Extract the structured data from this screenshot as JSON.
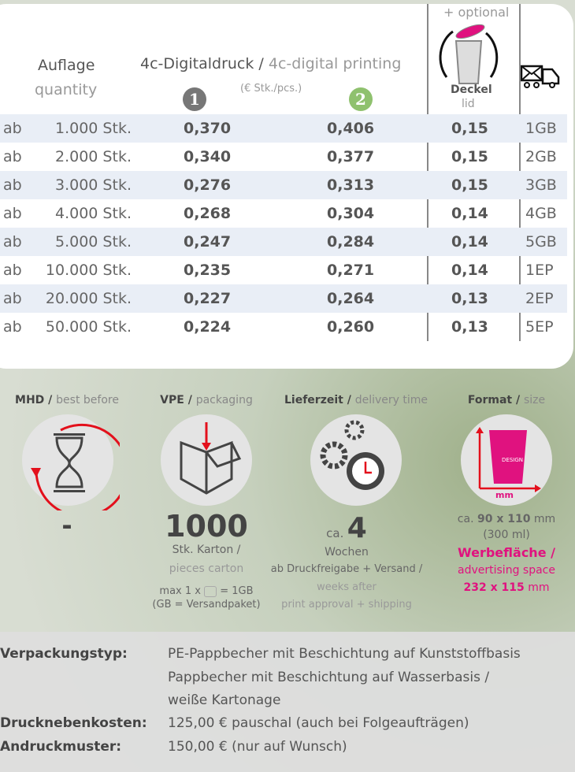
{
  "table": {
    "optional": "+ optional",
    "qty_de": "Auflage",
    "qty_en": "quantity",
    "print_de": "4c-Digitaldruck /",
    "print_en": "4c-digital printing",
    "unit": "(€ Stk./pcs.)",
    "badge1": "1",
    "badge2": "2",
    "lid_de": "Deckel",
    "lid_en": "lid",
    "rows": [
      {
        "ab": "ab",
        "qty": "1.000 Stk.",
        "p1": "0,370",
        "p2": "0,406",
        "lid": "0,15",
        "gb": "1GB"
      },
      {
        "ab": "ab",
        "qty": "2.000 Stk.",
        "p1": "0,340",
        "p2": "0,377",
        "lid": "0,15",
        "gb": "2GB"
      },
      {
        "ab": "ab",
        "qty": "3.000 Stk.",
        "p1": "0,276",
        "p2": "0,313",
        "lid": "0,15",
        "gb": "3GB"
      },
      {
        "ab": "ab",
        "qty": "4.000 Stk.",
        "p1": "0,268",
        "p2": "0,304",
        "lid": "0,14",
        "gb": "4GB"
      },
      {
        "ab": "ab",
        "qty": "5.000 Stk.",
        "p1": "0,247",
        "p2": "0,284",
        "lid": "0,14",
        "gb": "5GB"
      },
      {
        "ab": "ab",
        "qty": "10.000 Stk.",
        "p1": "0,235",
        "p2": "0,271",
        "lid": "0,14",
        "gb": "1EP"
      },
      {
        "ab": "ab",
        "qty": "20.000 Stk.",
        "p1": "0,227",
        "p2": "0,264",
        "lid": "0,13",
        "gb": "2EP"
      },
      {
        "ab": "ab",
        "qty": "50.000 Stk.",
        "p1": "0,224",
        "p2": "0,260",
        "lid": "0,13",
        "gb": "5EP"
      }
    ]
  },
  "info": {
    "mhd_de": "MHD /",
    "mhd_en": "best before",
    "mhd_val": "-",
    "vpe_de": "VPE /",
    "vpe_en": "packaging",
    "vpe_val": "1000",
    "vpe_l1": "Stk. Karton /",
    "vpe_l2": "pieces carton",
    "vpe_l3a": "max 1 x",
    "vpe_l3b": "= 1GB",
    "vpe_l4": "(GB = Versandpaket)",
    "lz_de": "Lieferzeit /",
    "lz_en": "delivery time",
    "lz_ca": "ca.",
    "lz_val": "4",
    "lz_l1": "Wochen",
    "lz_l2": "ab Druckfreigabe + Versand /",
    "lz_l3": "weeks after",
    "lz_l4": "print approval + shipping",
    "fmt_de": "Format /",
    "fmt_en": "size",
    "fmt_design": "DESIGN",
    "fmt_mm": "mm",
    "fmt_l1a": "ca.",
    "fmt_l1b": "90 x 110",
    "fmt_l1c": "mm",
    "fmt_l2": "(300 ml)",
    "fmt_l3": "Werbefläche /",
    "fmt_l4": "advertising space",
    "fmt_l5a": "232 x 115",
    "fmt_l5b": "mm"
  },
  "specs": [
    {
      "label": "Verpackungstyp:",
      "lines": [
        "PE-Pappbecher mit Beschichtung auf Kunststoffbasis",
        "Pappbecher mit Beschichtung auf Wasserbasis /",
        "weiße Kartonage"
      ]
    },
    {
      "label": "Drucknebenkosten:",
      "lines": [
        "125,00 € pauschal (auch bei Folgeaufträgen)"
      ]
    },
    {
      "label": "Andruckmuster:",
      "lines": [
        "150,00 € (nur auf Wunsch)"
      ]
    }
  ],
  "colors": {
    "accent": "#e0127f",
    "green": "#8fc16e",
    "badge_gray": "#777777",
    "red": "#e3101c"
  }
}
